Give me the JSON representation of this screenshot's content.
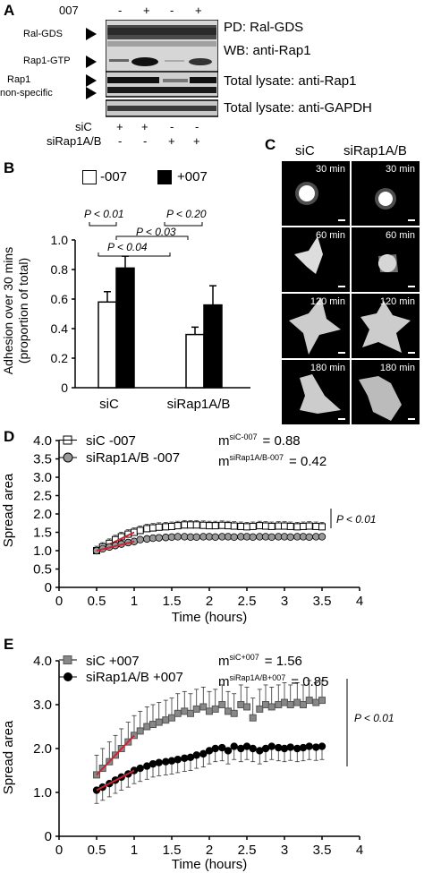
{
  "panelA": {
    "letter": "A",
    "col_header": "007",
    "signs_007": [
      "-",
      "+",
      "-",
      "+"
    ],
    "left_labels": [
      "Ral-GDS",
      "Rap1-GTP",
      "Rap1",
      "non-specific"
    ],
    "right_labels": [
      "PD: Ral-GDS",
      "WB: anti-Rap1",
      "Total lysate: anti-Rap1",
      "Total lysate: anti-GAPDH"
    ],
    "row_labels": [
      "siC",
      "siRap1A/B"
    ],
    "signs_siC": [
      "+",
      "+",
      "-",
      "-"
    ],
    "signs_siRap": [
      "-",
      "-",
      "+",
      "+"
    ]
  },
  "panelB": {
    "letter": "B",
    "legend": [
      "-007",
      "+007"
    ],
    "ylabel_line1": "Adhesion over 30 mins",
    "ylabel_line2": "(proportion of total)",
    "pvals": [
      "P < 0.01",
      "P < 0.20",
      "P < 0.03",
      "P < 0.04"
    ],
    "yticks": [
      "0",
      "0.2",
      "0.4",
      "0.6",
      "0.8",
      "1.0"
    ],
    "categories": [
      "siC",
      "siRap1A/B"
    ],
    "chart_data": {
      "type": "bar",
      "categories": [
        "siC",
        "siRap1A/B"
      ],
      "series": [
        {
          "name": "-007",
          "values": [
            0.58,
            0.36
          ],
          "errors": [
            0.07,
            0.05
          ]
        },
        {
          "name": "+007",
          "values": [
            0.81,
            0.56
          ],
          "errors": [
            0.08,
            0.13
          ]
        }
      ],
      "ylabel": "Adhesion over 30 mins (proportion of total)",
      "ylim": [
        0,
        1.0
      ]
    }
  },
  "panelC": {
    "letter": "C",
    "col_headers": [
      "siC",
      "siRap1A/B"
    ],
    "times": [
      "30 min",
      "60 min",
      "120 min",
      "180 min"
    ]
  },
  "panelD": {
    "letter": "D",
    "legend": [
      "siC -007",
      "siRap1A/B -007"
    ],
    "m1": "m",
    "m1_sup": "siC-007",
    "m1_val": "= 0.88",
    "m2": "m",
    "m2_sup": "siRap1A/B-007",
    "m2_val": "= 0.42",
    "pval": "P < 0.01",
    "ylabel": "Spread area",
    "xlabel": "Time (hours)",
    "yticks": [
      "0",
      "0.5",
      "1.0",
      "1.5",
      "2.0",
      "2.5",
      "3.0",
      "3.5",
      "4.0"
    ],
    "xticks": [
      "0",
      "0.5",
      "1",
      "1.5",
      "2",
      "2.5",
      "3",
      "3.5",
      "4"
    ]
  },
  "panelE": {
    "letter": "E",
    "legend": [
      "siC +007",
      "siRap1A/B +007"
    ],
    "m1": "m",
    "m1_sup": "siC+007",
    "m1_val": "= 1.56",
    "m2": "m",
    "m2_sup": "siRap1A/B+007",
    "m2_val": "= 0.85",
    "pval": "P < 0.01",
    "ylabel": "Spread area",
    "xlabel": "Time (hours)",
    "yticks": [
      "0",
      "1.0",
      "2.0",
      "3.0",
      "4.0"
    ],
    "xticks": [
      "0",
      "0.5",
      "1",
      "1.5",
      "2",
      "2.5",
      "3",
      "3.5",
      "4"
    ]
  },
  "chart_data": [
    {
      "type": "bar",
      "categories": [
        "siC",
        "siRap1A/B"
      ],
      "series": [
        {
          "name": "-007",
          "values": [
            0.58,
            0.36
          ]
        },
        {
          "name": "+007",
          "values": [
            0.81,
            0.56
          ]
        }
      ],
      "ylabel": "Adhesion over 30 mins (proportion of total)",
      "ylim": [
        0,
        1.0
      ]
    },
    {
      "type": "scatter",
      "xlabel": "Time (hours)",
      "ylabel": "Spread area",
      "xlim": [
        0,
        4
      ],
      "ylim": [
        0,
        4
      ],
      "series": [
        {
          "name": "siC -007",
          "marker": "open-square",
          "x": [
            0.5,
            0.58,
            0.67,
            0.75,
            0.83,
            0.92,
            1.0,
            1.08,
            1.17,
            1.25,
            1.33,
            1.42,
            1.5,
            1.58,
            1.67,
            1.75,
            1.83,
            1.92,
            2.0,
            2.08,
            2.17,
            2.25,
            2.33,
            2.42,
            2.5,
            2.58,
            2.67,
            2.75,
            2.83,
            2.92,
            3.0,
            3.08,
            3.17,
            3.25,
            3.33,
            3.42,
            3.5
          ],
          "y": [
            1.0,
            1.1,
            1.2,
            1.3,
            1.38,
            1.45,
            1.5,
            1.55,
            1.6,
            1.62,
            1.64,
            1.65,
            1.66,
            1.68,
            1.7,
            1.7,
            1.7,
            1.69,
            1.68,
            1.68,
            1.69,
            1.68,
            1.67,
            1.66,
            1.65,
            1.66,
            1.68,
            1.67,
            1.66,
            1.67,
            1.67,
            1.66,
            1.65,
            1.66,
            1.67,
            1.66,
            1.65
          ],
          "error": 0.12
        },
        {
          "name": "siRap1A/B -007",
          "marker": "filled-circle",
          "x": [
            0.5,
            0.58,
            0.67,
            0.75,
            0.83,
            0.92,
            1.0,
            1.08,
            1.17,
            1.25,
            1.33,
            1.42,
            1.5,
            1.58,
            1.67,
            1.75,
            1.83,
            1.92,
            2.0,
            2.08,
            2.17,
            2.25,
            2.33,
            2.42,
            2.5,
            2.58,
            2.67,
            2.75,
            2.83,
            2.92,
            3.0,
            3.08,
            3.17,
            3.25,
            3.33,
            3.42,
            3.5
          ],
          "y": [
            1.0,
            1.05,
            1.1,
            1.14,
            1.18,
            1.22,
            1.25,
            1.3,
            1.32,
            1.34,
            1.35,
            1.36,
            1.37,
            1.38,
            1.38,
            1.37,
            1.37,
            1.38,
            1.38,
            1.37,
            1.38,
            1.38,
            1.37,
            1.38,
            1.38,
            1.37,
            1.38,
            1.38,
            1.37,
            1.38,
            1.38,
            1.37,
            1.38,
            1.38,
            1.37,
            1.38,
            1.38
          ],
          "error": 0.05
        }
      ]
    },
    {
      "type": "scatter",
      "xlabel": "Time (hours)",
      "ylabel": "Spread area",
      "xlim": [
        0,
        4
      ],
      "ylim": [
        0,
        4
      ],
      "series": [
        {
          "name": "siC +007",
          "marker": "gray-square",
          "x": [
            0.5,
            0.58,
            0.67,
            0.75,
            0.83,
            0.92,
            1.0,
            1.08,
            1.17,
            1.25,
            1.33,
            1.42,
            1.5,
            1.58,
            1.67,
            1.75,
            1.83,
            1.92,
            2.0,
            2.08,
            2.17,
            2.25,
            2.33,
            2.42,
            2.5,
            2.58,
            2.67,
            2.75,
            2.83,
            2.92,
            3.0,
            3.08,
            3.17,
            3.25,
            3.33,
            3.42,
            3.5
          ],
          "y": [
            1.4,
            1.55,
            1.7,
            1.85,
            2.0,
            2.15,
            2.3,
            2.4,
            2.5,
            2.55,
            2.6,
            2.65,
            2.7,
            2.8,
            2.85,
            2.8,
            2.9,
            2.95,
            2.85,
            2.9,
            3.0,
            2.85,
            2.8,
            3.0,
            2.95,
            2.7,
            2.9,
            3.0,
            2.95,
            3.0,
            3.05,
            3.0,
            3.05,
            3.0,
            3.1,
            3.05,
            3.1
          ],
          "error": 0.45
        },
        {
          "name": "siRap1A/B +007",
          "marker": "black-circle",
          "x": [
            0.5,
            0.58,
            0.67,
            0.75,
            0.83,
            0.92,
            1.0,
            1.08,
            1.17,
            1.25,
            1.33,
            1.42,
            1.5,
            1.58,
            1.67,
            1.75,
            1.83,
            1.92,
            2.0,
            2.08,
            2.17,
            2.25,
            2.33,
            2.42,
            2.5,
            2.58,
            2.67,
            2.75,
            2.83,
            2.92,
            3.0,
            3.08,
            3.17,
            3.25,
            3.33,
            3.42,
            3.5
          ],
          "y": [
            1.05,
            1.12,
            1.2,
            1.28,
            1.35,
            1.42,
            1.5,
            1.55,
            1.6,
            1.65,
            1.68,
            1.7,
            1.72,
            1.75,
            1.78,
            1.8,
            1.85,
            1.88,
            1.95,
            2.0,
            2.02,
            1.95,
            2.05,
            2.0,
            2.05,
            2.0,
            1.95,
            2.0,
            2.05,
            2.02,
            2.0,
            2.03,
            2.0,
            2.02,
            2.05,
            2.03,
            2.05
          ],
          "error": 0.3
        }
      ]
    }
  ]
}
